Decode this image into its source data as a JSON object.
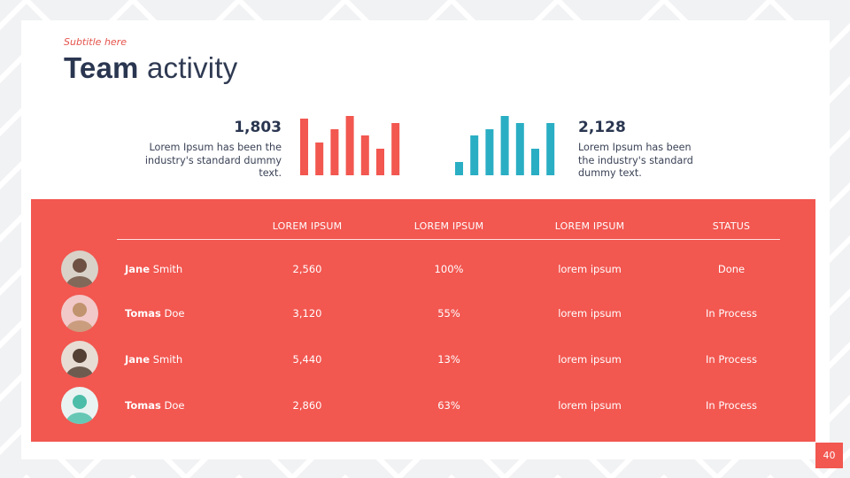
{
  "header": {
    "subtitle": "Subtitle here",
    "title_bold": "Team",
    "title_light": "activity"
  },
  "stats": [
    {
      "value": "1,803",
      "description": "Lorem Ipsum has been the industry's standard dummy text.",
      "color": "#f25750",
      "bars": [
        64,
        37,
        52,
        67,
        45,
        30,
        59
      ]
    },
    {
      "value": "2,128",
      "description": "Lorem Ipsum has been the industry's standard dummy text.",
      "color": "#2aaec4",
      "bars": [
        15,
        45,
        52,
        67,
        59,
        30,
        59
      ]
    }
  ],
  "table": {
    "columns": [
      "LOREM IPSUM",
      "LOREM IPSUM",
      "LOREM IPSUM",
      "STATUS"
    ],
    "rows": [
      {
        "first": "Jane",
        "last": "Smith",
        "c1": "2,560",
        "c2": "100%",
        "c3": "lorem ipsum",
        "status": "Done",
        "avatar_bg": "#d9d2c8",
        "avatar_fg": "#5b3b2a"
      },
      {
        "first": "Tomas",
        "last": "Doe",
        "c1": "3,120",
        "c2": "55%",
        "c3": "lorem ipsum",
        "status": "In Process",
        "avatar_bg": "#f1c9c9",
        "avatar_fg": "#b98a5e"
      },
      {
        "first": "Jane",
        "last": "Smith",
        "c1": "5,440",
        "c2": "13%",
        "c3": "lorem ipsum",
        "status": "In Process",
        "avatar_bg": "#e8ddd4",
        "avatar_fg": "#3a2418"
      },
      {
        "first": "Tomas",
        "last": "Doe",
        "c1": "2,860",
        "c2": "63%",
        "c3": "lorem ipsum",
        "status": "In Process",
        "avatar_bg": "#e9f4f2",
        "avatar_fg": "#2fb39b"
      }
    ]
  },
  "page_number": "40",
  "colors": {
    "accent": "#f25750",
    "teal": "#2aaec4",
    "navy": "#2a3650"
  }
}
